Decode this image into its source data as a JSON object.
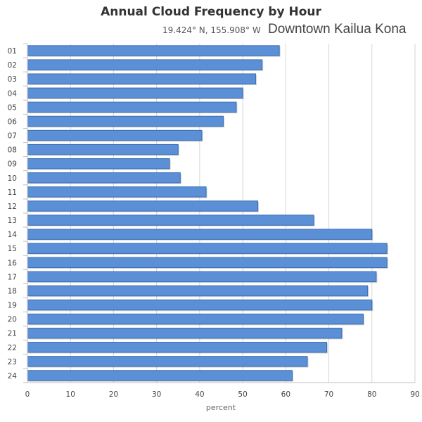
{
  "chart_data": {
    "type": "bar",
    "orientation": "horizontal",
    "title": "Annual Cloud Frequency by Hour",
    "subtitle": "19.424° N, 155.908° W",
    "location": "Downtown Kailua Kona",
    "xlabel": "percent",
    "ylabel": "",
    "xlim": [
      0,
      90
    ],
    "xticks": [
      0,
      10,
      20,
      30,
      40,
      50,
      60,
      70,
      80,
      90
    ],
    "grid": true,
    "legend": "none",
    "bar_color": "#5b8fd6",
    "bar_edge_color": "#3b6eb5",
    "categories": [
      "01",
      "02",
      "03",
      "04",
      "05",
      "06",
      "07",
      "08",
      "09",
      "10",
      "11",
      "12",
      "13",
      "14",
      "15",
      "16",
      "17",
      "18",
      "19",
      "20",
      "21",
      "22",
      "23",
      "24"
    ],
    "values": [
      58.5,
      54.5,
      53,
      50,
      48.5,
      45.5,
      40.5,
      35,
      33,
      35.5,
      41.5,
      53.5,
      66.5,
      80,
      83.5,
      83.5,
      81,
      79,
      80,
      78,
      73,
      69.5,
      65,
      61.5
    ]
  }
}
